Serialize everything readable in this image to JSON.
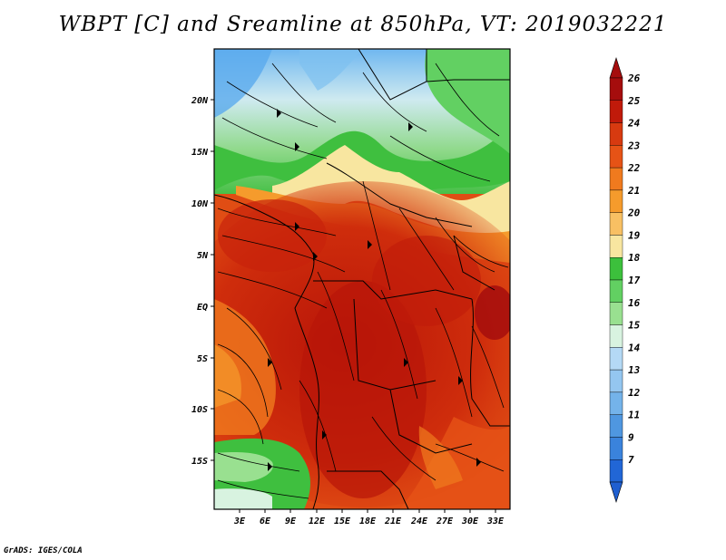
{
  "title": "WBPT [C] and Sreamline at 850hPa, VT: 2019032221",
  "credit": "GrADS: IGES/COLA",
  "map": {
    "lat_labels": [
      "20N",
      "15N",
      "10N",
      "5N",
      "EQ",
      "5S",
      "10S",
      "15S"
    ],
    "lon_labels": [
      "3E",
      "6E",
      "9E",
      "12E",
      "15E",
      "18E",
      "21E",
      "24E",
      "27E",
      "30E",
      "33E"
    ]
  },
  "colorbar": {
    "levels": [
      {
        "label": "26",
        "color": "#a50d0d"
      },
      {
        "label": "25",
        "color": "#c01a0a"
      },
      {
        "label": "24",
        "color": "#d73a10"
      },
      {
        "label": "23",
        "color": "#e65316"
      },
      {
        "label": "22",
        "color": "#f07a1e"
      },
      {
        "label": "21",
        "color": "#f59b2c"
      },
      {
        "label": "20",
        "color": "#f8c063"
      },
      {
        "label": "19",
        "color": "#f8e6a0"
      },
      {
        "label": "18",
        "color": "#3cc03c"
      },
      {
        "label": "17",
        "color": "#62d062"
      },
      {
        "label": "16",
        "color": "#99e090"
      },
      {
        "label": "15",
        "color": "#d8f3e0"
      },
      {
        "label": "14",
        "color": "#b4d9f5"
      },
      {
        "label": "13",
        "color": "#94c6f0"
      },
      {
        "label": "12",
        "color": "#74b3ea"
      },
      {
        "label": "11",
        "color": "#4f97e0"
      },
      {
        "label": "9",
        "color": "#3a83dc"
      },
      {
        "label": "7",
        "color": "#2166d6"
      }
    ],
    "top_color": "#a50d0d",
    "bottom_color": "#1f5fd0"
  }
}
